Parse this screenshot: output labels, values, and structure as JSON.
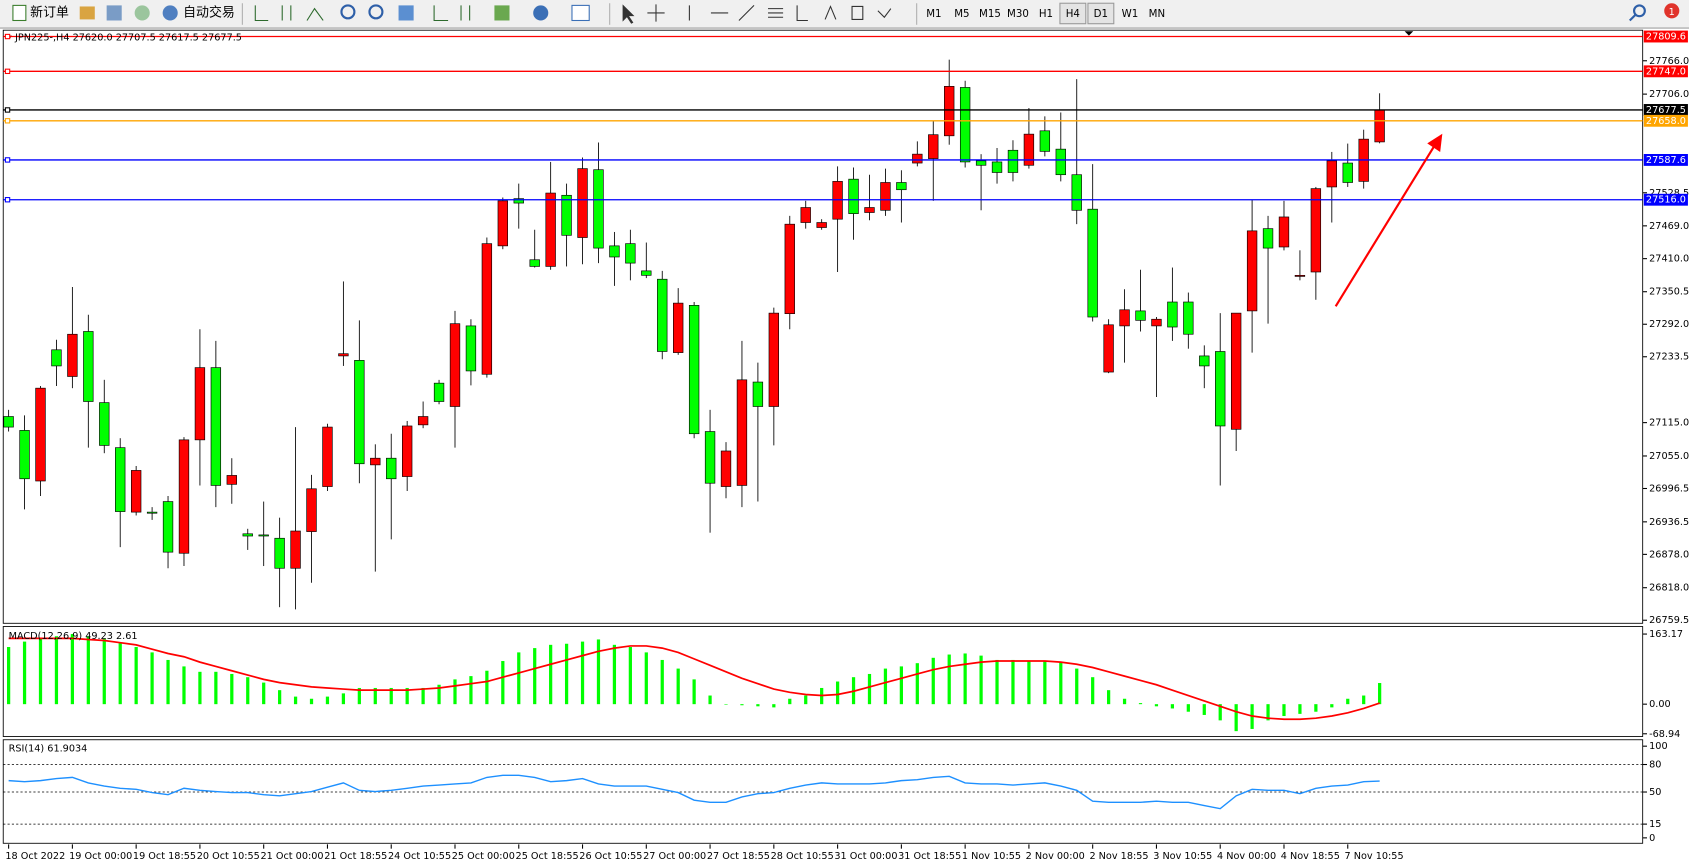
{
  "toolbar": {
    "new_order": "新订单",
    "auto_trading": "自动交易",
    "timeframes": [
      "M1",
      "M5",
      "M15",
      "M30",
      "H1",
      "H4",
      "D1",
      "W1",
      "MN"
    ],
    "notifications": "1"
  },
  "chart_data": [
    {
      "type": "candlestick",
      "label": "JPN225-,H4 27620.0 27707.5 27617.5 27677.5",
      "up_color": "#ff0000",
      "down_color": "#00ff00",
      "grid": false,
      "categories": [
        "18 Oct 2022",
        null,
        null,
        null,
        "19 Oct 00:00",
        null,
        null,
        null,
        "19 Oct 18:55",
        null,
        null,
        null,
        "20 Oct 10:55",
        null,
        null,
        null,
        "21 Oct 00:00",
        null,
        null,
        null,
        "21 Oct 18:55",
        null,
        null,
        null,
        "24 Oct 10:55",
        null,
        null,
        null,
        "25 Oct 00:00",
        null,
        null,
        null,
        "25 Oct 18:55",
        null,
        null,
        null,
        "26 Oct 10:55",
        null,
        null,
        null,
        "27 Oct 00:00",
        null,
        null,
        null,
        "27 Oct 18:55",
        null,
        null,
        null,
        "28 Oct 10:55",
        null,
        null,
        null,
        "31 Oct 00:00",
        null,
        null,
        null,
        "31 Oct 18:55",
        null,
        null,
        null,
        "1 Nov 10:55",
        null,
        null,
        null,
        "2 Nov 00:00",
        null,
        null,
        null,
        "2 Nov 18:55",
        null,
        null,
        null,
        "3 Nov 10:55",
        null,
        null,
        null,
        "4 Nov 00:00",
        null,
        null,
        null,
        "4 Nov 18:55",
        null,
        null,
        null,
        "7 Nov 10:55",
        null,
        null
      ],
      "open": [
        27126,
        27101,
        27010,
        27246,
        27198,
        27279,
        27151,
        27070,
        26954,
        26954,
        26973,
        26880,
        27084,
        27214,
        27004,
        26915,
        26913,
        26907,
        26853,
        26919,
        27000,
        27235,
        27227,
        27039,
        27051,
        27018,
        27111,
        27186,
        27144,
        27289,
        27202,
        27433,
        27518,
        27408,
        27396,
        27524,
        27448,
        27570,
        27433,
        27437,
        27388,
        27373,
        27241,
        27326,
        27099,
        27000,
        27002,
        27188,
        27144,
        27311,
        27475,
        27466,
        27481,
        27553,
        27493,
        27497,
        27547,
        27582,
        27590,
        27631,
        27718,
        27586,
        27584,
        27605,
        27578,
        27640,
        27607,
        27561,
        27499,
        27206,
        27289,
        27316,
        27289,
        27332,
        27332,
        27235,
        27243,
        27103,
        27316,
        27464,
        27431,
        27378,
        27386,
        27539,
        27582,
        27549,
        27620
      ],
      "high": [
        27138,
        27128,
        27181,
        27264,
        27359,
        27309,
        27192,
        27087,
        27037,
        26963,
        26983,
        27089,
        27283,
        27262,
        27051,
        26924,
        26973,
        26944,
        27107,
        27021,
        27113,
        27369,
        27299,
        27076,
        27095,
        27118,
        27153,
        27192,
        27316,
        27301,
        27448,
        27520,
        27545,
        27462,
        27584,
        27545,
        27592,
        27619,
        27458,
        27462,
        27439,
        27388,
        27357,
        27332,
        27138,
        27080,
        27262,
        27223,
        27322,
        27487,
        27514,
        27481,
        27576,
        27574,
        27561,
        27572,
        27569,
        27621,
        27658,
        27768,
        27730,
        27598,
        27609,
        27623,
        27681,
        27666,
        27673,
        27733,
        27580,
        27301,
        27355,
        27390,
        27305,
        27394,
        27349,
        27254,
        27312,
        27312,
        27516,
        27487,
        27514,
        27425,
        27539,
        27602,
        27617,
        27642,
        27707.5
      ],
      "low": [
        27099,
        26959,
        26983,
        27181,
        27177,
        27070,
        27060,
        26891,
        26948,
        26940,
        26853,
        26857,
        27002,
        26963,
        26969,
        26886,
        26857,
        26783,
        26779,
        26827,
        26992,
        27217,
        27006,
        26847,
        26905,
        26992,
        27105,
        27148,
        27070,
        27182,
        27196,
        27427,
        27464,
        27394,
        27390,
        27396,
        27400,
        27402,
        27361,
        27371,
        27375,
        27229,
        27237,
        27087,
        26917,
        26979,
        26963,
        26973,
        27074,
        27283,
        27464,
        27462,
        27386,
        27444,
        27479,
        27487,
        27475,
        27576,
        27514,
        27615,
        27574,
        27497,
        27545,
        27549,
        27572,
        27594,
        27549,
        27472,
        27297,
        27204,
        27223,
        27279,
        27161,
        27262,
        27248,
        27177,
        27002,
        27064,
        27241,
        27293,
        27425,
        27371,
        27336,
        27475,
        27539,
        27536,
        27617.5
      ],
      "close": [
        27107,
        27014,
        27177,
        27217,
        27274,
        27153,
        27074,
        26955,
        27029,
        26952,
        26882,
        27084,
        27214,
        27002,
        27020,
        26911,
        26911,
        26853,
        26920,
        26996,
        27107,
        27239,
        27041,
        27051,
        27014,
        27109,
        27126,
        27153,
        27293,
        27208,
        27437,
        27514,
        27510,
        27396,
        27528,
        27452,
        27572,
        27429,
        27413,
        27402,
        27380,
        27243,
        27330,
        27095,
        27006,
        27064,
        27192,
        27144,
        27312,
        27472,
        27502,
        27475,
        27549,
        27491,
        27502,
        27547,
        27534,
        27598,
        27633,
        27720,
        27584,
        27578,
        27565,
        27565,
        27634,
        27603,
        27561,
        27497,
        27305,
        27291,
        27318,
        27299,
        27301,
        27287,
        27274,
        27217,
        27109,
        27312,
        27460,
        27429,
        27485,
        27380,
        27536,
        27586,
        27547,
        27625,
        27677.5
      ],
      "ylim": [
        26754,
        27821
      ],
      "yticks": [
        {
          "value": 27766,
          "label": "27766.0"
        },
        {
          "value": 27706,
          "label": "27706.0"
        },
        27528.5,
        {
          "value": 27469,
          "label": "27469.0"
        },
        {
          "value": 27410,
          "label": "27410.0"
        },
        27350.5,
        {
          "value": 27292,
          "label": "27292.0"
        },
        27233.5,
        {
          "value": 27115,
          "label": "27115.0"
        },
        {
          "value": 27055,
          "label": "27055.0"
        },
        26996.5,
        26936.5,
        {
          "value": 26878,
          "label": "26878.0"
        },
        {
          "value": 26818,
          "label": "26818.0"
        },
        26759.5
      ],
      "levels": [
        {
          "value": 27809.6,
          "color": "#ff0000"
        },
        {
          "value": 27747,
          "label": "27747.0",
          "color": "#ff0000"
        },
        {
          "value": 27677.5,
          "color": "#000000"
        },
        {
          "value": 27658,
          "label": "27658.0",
          "color": "#ffa500"
        },
        {
          "value": 27587.6,
          "color": "#0000ff"
        },
        {
          "value": 27516,
          "label": "27516.0",
          "color": "#0000ff"
        }
      ]
    },
    {
      "type": "macd",
      "label": "MACD(12,26,9) 49.23 2.61",
      "histogram": {
        "color": "#00ff00",
        "values": [
          133.0,
          145.6,
          153.1,
          158.1,
          163.2,
          158.1,
          153.1,
          143.1,
          133.0,
          120.5,
          102.9,
          87.9,
          75.3,
          75.3,
          70.3,
          62.8,
          50.2,
          32.6,
          17.6,
          12.6,
          17.6,
          25.1,
          37.7,
          37.7,
          37.7,
          37.7,
          37.7,
          45.2,
          57.7,
          65.3,
          77.8,
          100.4,
          120.5,
          130.5,
          138.1,
          140.6,
          145.6,
          150.6,
          138.1,
          133.0,
          120.5,
          102.9,
          82.8,
          57.7,
          20.1,
          0,
          -2.5,
          -5.0,
          -7.5,
          12.6,
          20.1,
          37.7,
          52.7,
          62.8,
          70.3,
          82.8,
          87.9,
          95.4,
          107.9,
          115.5,
          118.0,
          113.0,
          102.9,
          102.9,
          100.4,
          100.4,
          97.9,
          82.8,
          62.8,
          32.6,
          12.6,
          2.5,
          -5.0,
          -10.0,
          -17.6,
          -25.1,
          -37.7,
          -62.8,
          -57.7,
          -37.7,
          -27.6,
          -22.6,
          -17.6,
          -7.5,
          12.6,
          20.1,
          49.23
        ]
      },
      "signal": {
        "color": "#ff0000",
        "values": [
          153.1,
          153.1,
          153.1,
          153.1,
          153.1,
          150.6,
          148.1,
          143.1,
          138.1,
          128.0,
          118.0,
          110.4,
          97.9,
          87.9,
          77.8,
          67.8,
          57.7,
          50.2,
          45.2,
          40.2,
          37.7,
          35.1,
          32.6,
          32.6,
          32.6,
          32.6,
          35.1,
          37.7,
          42.7,
          47.7,
          52.7,
          62.8,
          72.8,
          82.8,
          92.9,
          102.9,
          113.0,
          123.0,
          130.5,
          135.5,
          135.5,
          130.5,
          120.5,
          105.4,
          90.4,
          75.3,
          60.2,
          47.7,
          35.1,
          27.6,
          22.6,
          20.1,
          22.6,
          30.1,
          40.2,
          50.2,
          60.2,
          70.3,
          80.3,
          87.9,
          92.9,
          97.9,
          100.4,
          100.4,
          100.4,
          100.4,
          97.9,
          92.9,
          85.3,
          75.3,
          65.3,
          55.2,
          45.2,
          32.6,
          20.1,
          7.5,
          -5.0,
          -17.6,
          -27.6,
          -32.6,
          -35.1,
          -35.1,
          -32.6,
          -27.6,
          -20.1,
          -10.0,
          2.61
        ]
      },
      "ylim": [
        -75.3,
        180.7
      ],
      "yticks": [
        163.17,
        {
          "value": 0,
          "label": "0.00"
        },
        -68.94
      ]
    },
    {
      "type": "rsi",
      "label": "RSI(14) 61.9034",
      "color": "#1e90ff",
      "values": [
        62.4,
        61.2,
        62.4,
        64.7,
        65.9,
        60.0,
        56.5,
        54.1,
        52.9,
        49.4,
        47.1,
        54.1,
        51.8,
        50.6,
        49.4,
        49.4,
        47.1,
        45.9,
        48.2,
        50.6,
        55.3,
        60.0,
        51.8,
        50.6,
        51.8,
        54.1,
        56.5,
        57.6,
        58.8,
        60.0,
        65.9,
        68.2,
        68.2,
        65.9,
        61.2,
        62.4,
        64.7,
        58.8,
        56.5,
        56.5,
        56.5,
        52.9,
        49.4,
        41.2,
        38.8,
        38.8,
        44.7,
        48.2,
        49.4,
        54.1,
        57.6,
        60.0,
        58.8,
        58.8,
        58.8,
        60.0,
        62.4,
        63.5,
        65.9,
        67.1,
        60.0,
        58.8,
        58.8,
        57.6,
        58.8,
        60.0,
        56.5,
        51.8,
        40.0,
        38.8,
        38.8,
        38.8,
        40.0,
        38.8,
        38.8,
        35.3,
        31.8,
        45.9,
        52.9,
        51.8,
        51.8,
        48.2,
        54.1,
        56.5,
        57.6,
        61.2,
        61.9034
      ],
      "ylim": [
        -5.9,
        107
      ],
      "yticks": [
        100,
        80,
        50,
        15,
        0
      ],
      "levels": [
        80,
        50,
        15
      ]
    }
  ]
}
